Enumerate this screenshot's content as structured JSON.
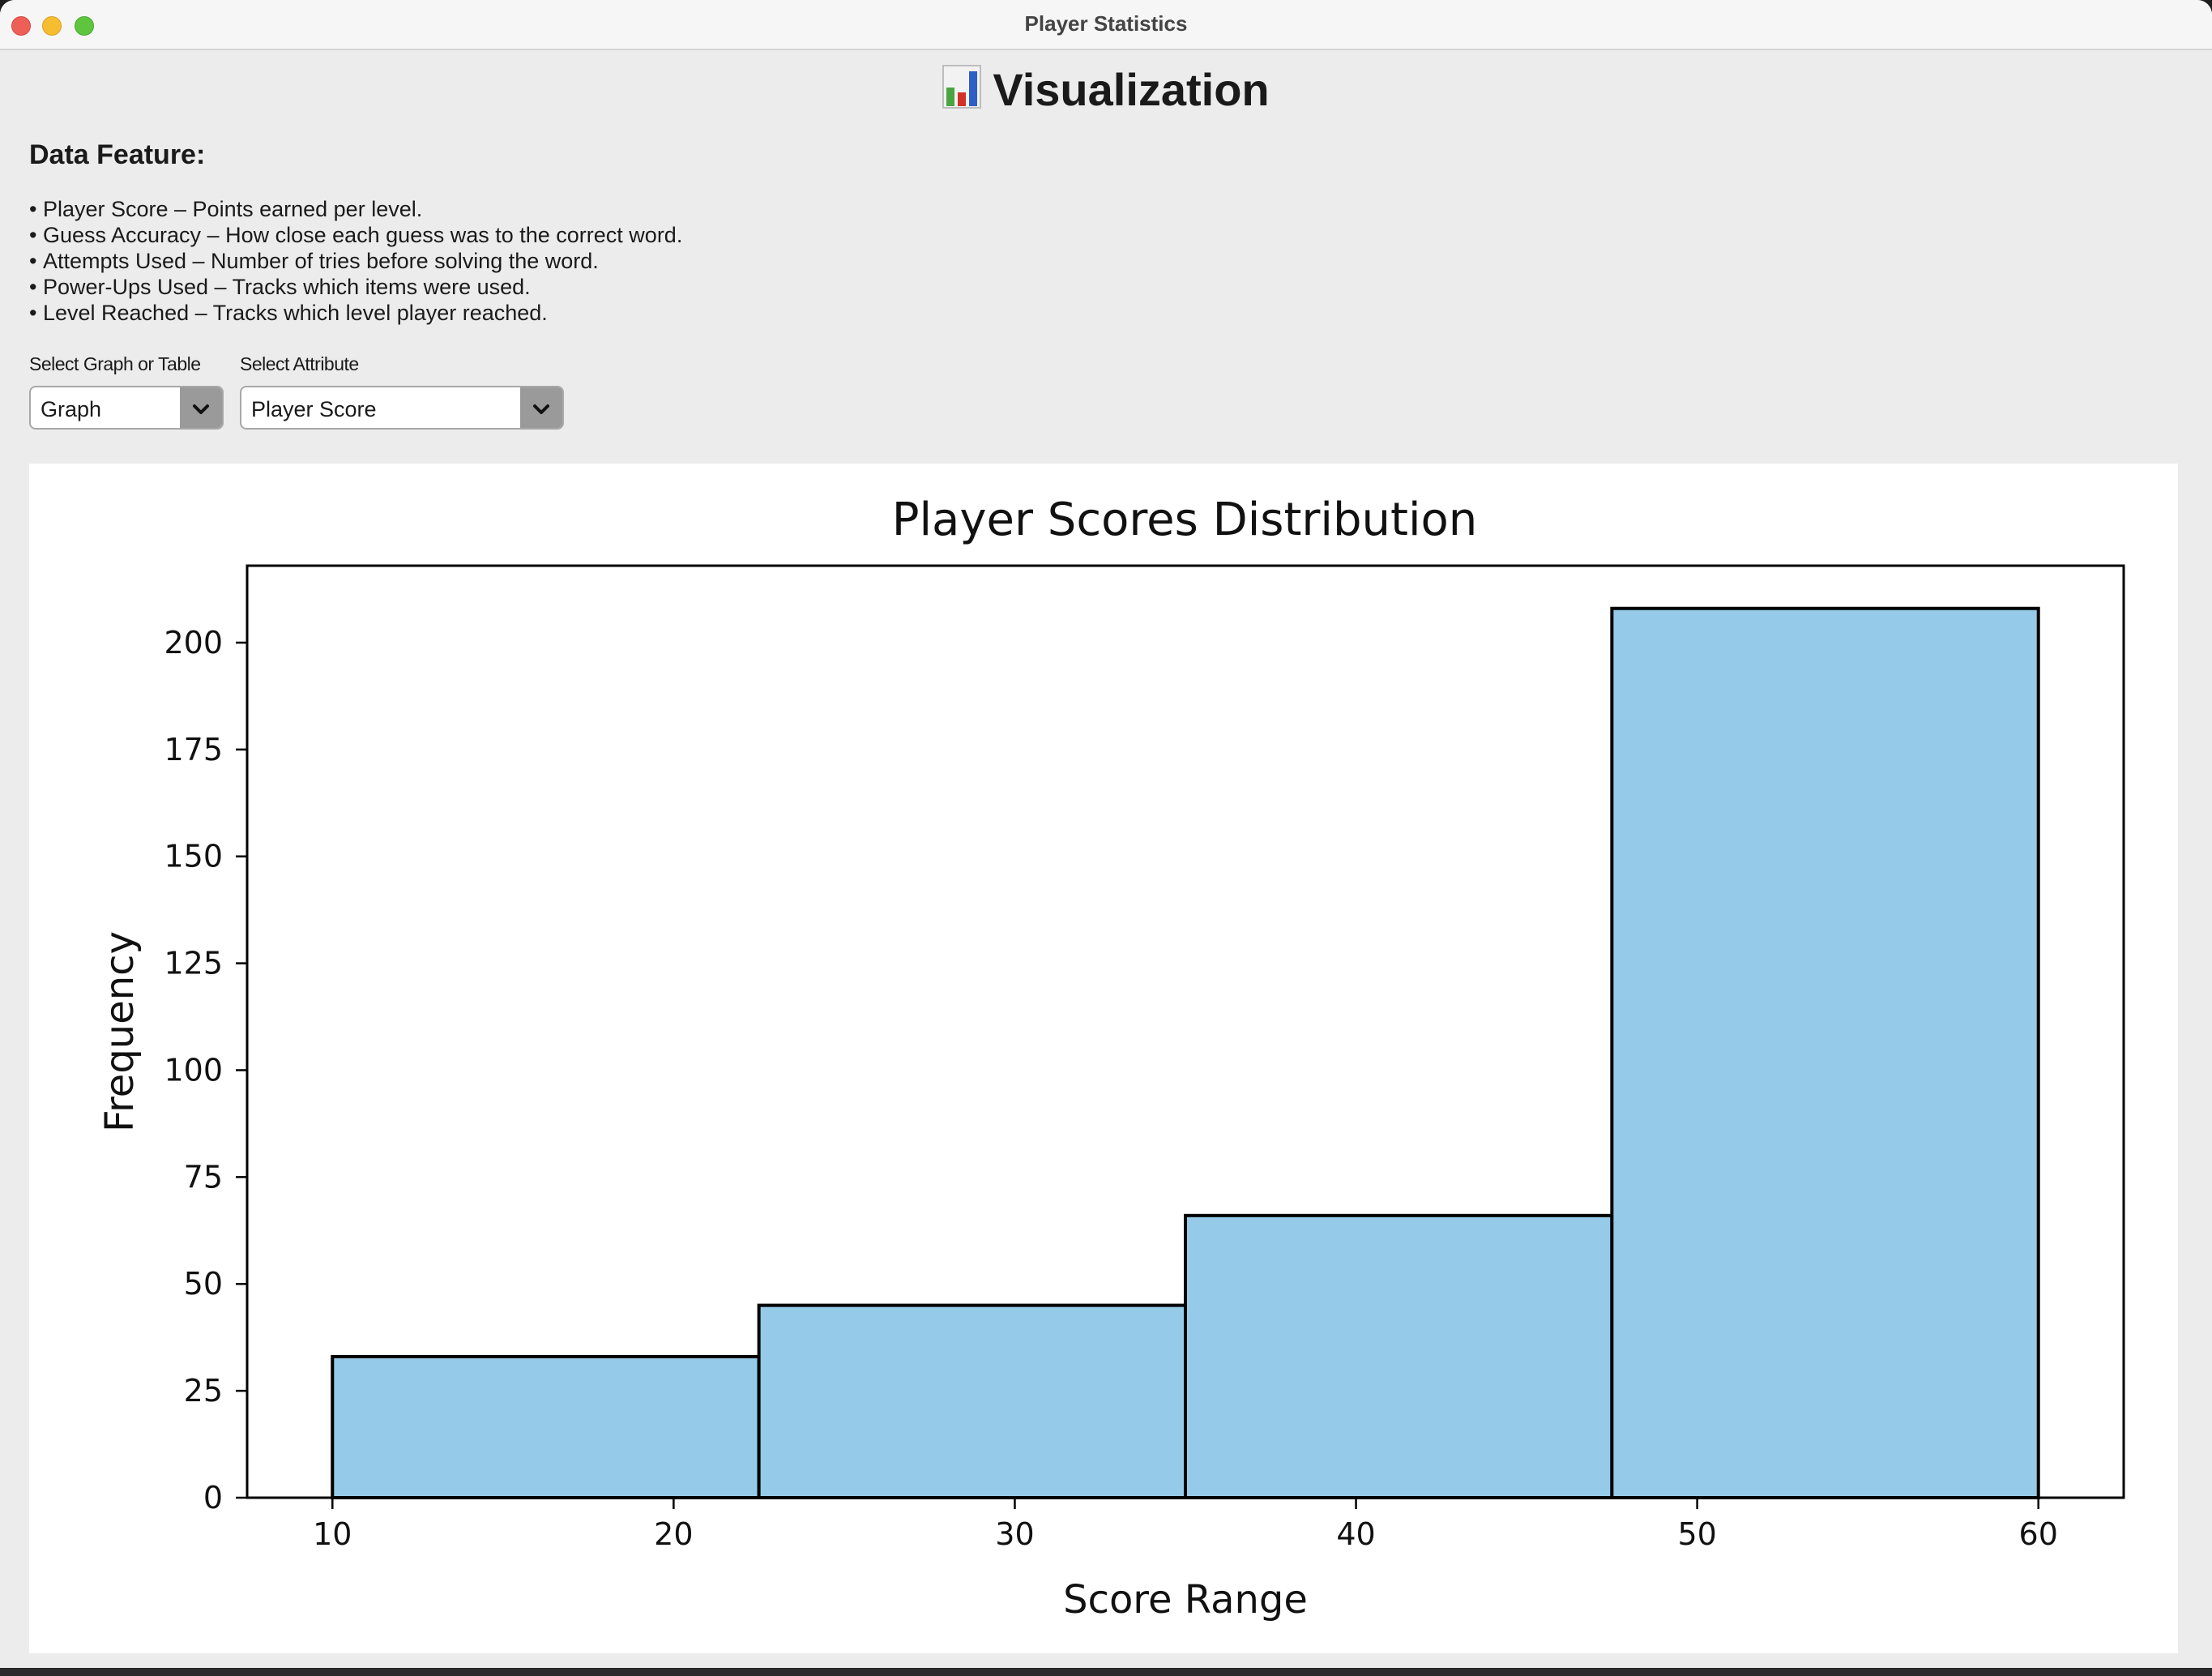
{
  "window": {
    "title": "Player Statistics"
  },
  "page": {
    "heading": "Visualization",
    "heading_icon": "bar-chart-icon"
  },
  "features": {
    "title": "Data Feature:",
    "items": [
      "Player Score – Points earned per level.",
      "Guess Accuracy – How close each guess was to the correct word.",
      "Attempts Used – Number of tries before solving the word.",
      "Power-Ups Used – Tracks which items were used.",
      "Level Reached – Tracks which level player reached."
    ]
  },
  "controls": {
    "view_label": "Select Graph or Table",
    "view_value": "Graph",
    "attribute_label": "Select Attribute",
    "attribute_value": "Player Score",
    "dropdown_icon": "chevron-down-icon"
  },
  "chart_data": {
    "type": "bar",
    "title": "Player Scores Distribution",
    "xlabel": "Score Range",
    "ylabel": "Frequency",
    "bins": [
      [
        10,
        22.5
      ],
      [
        22.5,
        35
      ],
      [
        35,
        47.5
      ],
      [
        47.5,
        60
      ]
    ],
    "values": [
      33,
      45,
      66,
      208
    ],
    "xlim": [
      7.5,
      62.5
    ],
    "ylim": [
      0,
      218
    ],
    "xticks": [
      10,
      20,
      30,
      40,
      50,
      60
    ],
    "yticks": [
      0,
      25,
      50,
      75,
      100,
      125,
      150,
      175,
      200
    ],
    "bar_color": "#95cbe8",
    "edge_color": "#000000",
    "grid": false,
    "legend": false
  }
}
